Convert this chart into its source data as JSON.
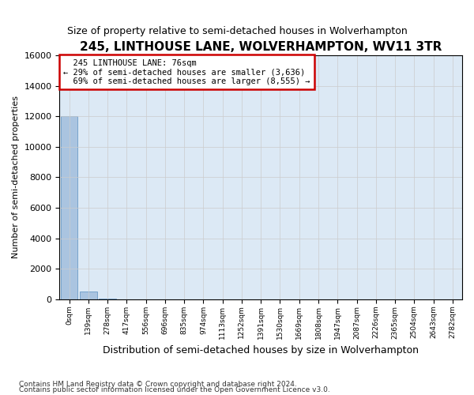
{
  "title": "245, LINTHOUSE LANE, WOLVERHAMPTON, WV11 3TR",
  "subtitle": "Size of property relative to semi-detached houses in Wolverhampton",
  "xlabel": "Distribution of semi-detached houses by size in Wolverhampton",
  "ylabel": "Number of semi-detached properties",
  "bin_labels": [
    "0sqm",
    "139sqm",
    "278sqm",
    "417sqm",
    "556sqm",
    "696sqm",
    "835sqm",
    "974sqm",
    "1113sqm",
    "1252sqm",
    "1391sqm",
    "1530sqm",
    "1669sqm",
    "1808sqm",
    "1947sqm",
    "2087sqm",
    "2226sqm",
    "2365sqm",
    "2504sqm",
    "2643sqm",
    "2782sqm"
  ],
  "bar_heights": [
    12000,
    500,
    30,
    10,
    5,
    3,
    2,
    2,
    2,
    2,
    2,
    1,
    1,
    1,
    1,
    1,
    1,
    1,
    1,
    1,
    0
  ],
  "bar_color": "#aac4e0",
  "bar_edge_color": "#5a8fc0",
  "property_label": "245 LINTHOUSE LANE: 76sqm",
  "pct_smaller": 29,
  "pct_larger": 69,
  "count_smaller": 3636,
  "count_larger": 8555,
  "ylim": [
    0,
    16000
  ],
  "yticks": [
    0,
    2000,
    4000,
    6000,
    8000,
    10000,
    12000,
    14000,
    16000
  ],
  "annotation_box_color": "#ffffff",
  "annotation_box_edge": "#cc0000",
  "grid_color": "#cccccc",
  "bg_color": "#dce9f5",
  "footnote1": "Contains HM Land Registry data © Crown copyright and database right 2024.",
  "footnote2": "Contains public sector information licensed under the Open Government Licence v3.0."
}
